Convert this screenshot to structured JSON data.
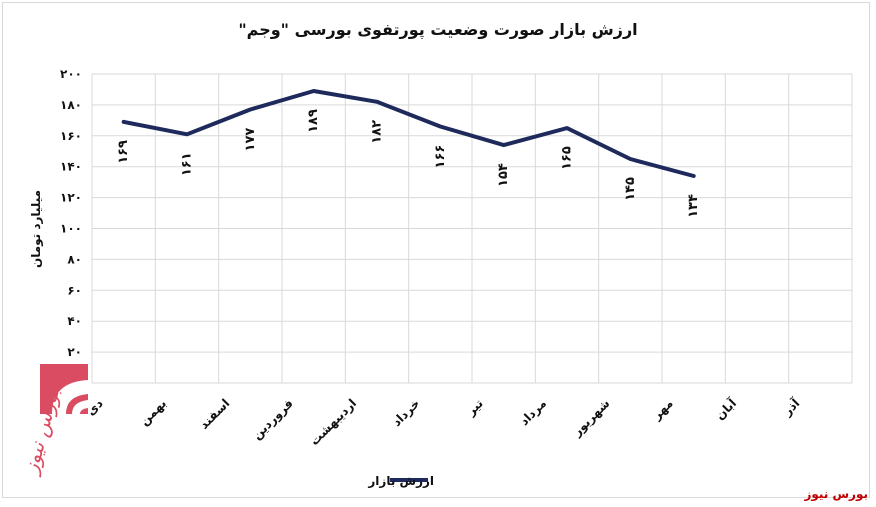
{
  "chart_data": {
    "type": "line",
    "title": "ارزش بازار صورت وضعیت پورتفوی بورسی \"وجم\"",
    "ylabel": "میلیارد تومان",
    "xlabel": "",
    "ylim": [
      0,
      200
    ],
    "yticks": [
      "۰",
      "۲۰",
      "۴۰",
      "۶۰",
      "۸۰",
      "۱۰۰",
      "۱۲۰",
      "۱۴۰",
      "۱۶۰",
      "۱۸۰",
      "۲۰۰"
    ],
    "categories": [
      "دی",
      "بهمن",
      "اسفند",
      "فروردین",
      "اردیبهشت",
      "خرداد",
      "تیر",
      "مرداد",
      "شهریور",
      "مهر",
      "آبان",
      "آذر"
    ],
    "series": [
      {
        "name": "ارزش بازار",
        "color": "#1f2a5c",
        "values": [
          169,
          161,
          177,
          189,
          182,
          166,
          154,
          165,
          145,
          134,
          null,
          null
        ],
        "labels": [
          "۱۶۹",
          "۱۶۱",
          "۱۷۷",
          "۱۸۹",
          "۱۸۲",
          "۱۶۶",
          "۱۵۴",
          "۱۶۵",
          "۱۴۵",
          "۱۳۴",
          "",
          ""
        ]
      }
    ],
    "grid": true,
    "legend": "bottom"
  },
  "watermark": "بورس نیوز",
  "footer": "بورس نیوز"
}
